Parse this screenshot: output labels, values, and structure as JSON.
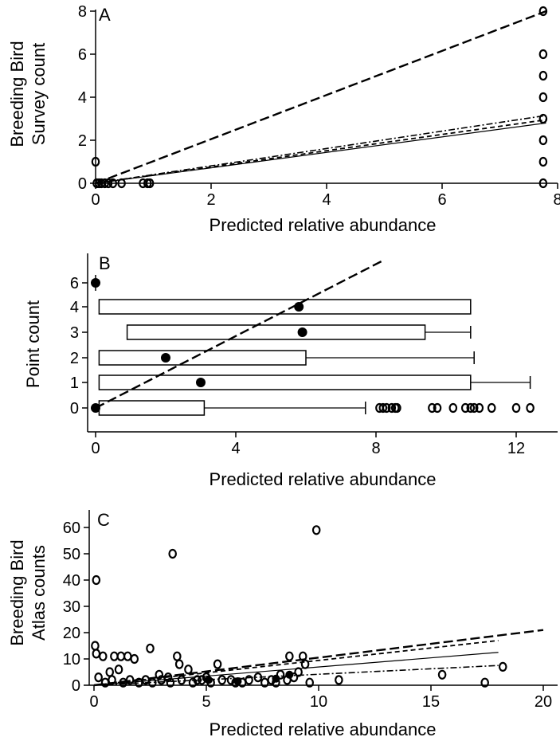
{
  "chart_data": [
    {
      "panel": "A",
      "type": "scatter",
      "xlabel": "Predicted relative abundance",
      "ylabel": [
        "Breeding Bird",
        "Survey count"
      ],
      "xlim": [
        0,
        8
      ],
      "ylim": [
        0,
        8
      ],
      "xticks": [
        0,
        2,
        4,
        6,
        8
      ],
      "yticks": [
        0,
        2,
        4,
        6,
        8
      ],
      "points": [
        [
          0,
          1
        ],
        [
          0.02,
          0
        ],
        [
          0.06,
          0
        ],
        [
          0.1,
          0
        ],
        [
          0.16,
          0
        ],
        [
          0.22,
          0
        ],
        [
          0.3,
          0
        ],
        [
          0.45,
          0
        ],
        [
          0.82,
          0
        ],
        [
          0.9,
          0
        ],
        [
          0.94,
          0
        ],
        [
          7.75,
          0
        ],
        [
          7.75,
          1
        ],
        [
          7.75,
          2
        ],
        [
          7.75,
          3
        ],
        [
          7.75,
          4
        ],
        [
          7.75,
          5
        ],
        [
          7.75,
          6
        ],
        [
          7.75,
          8
        ]
      ],
      "lines": [
        {
          "style": "long-dash",
          "points": [
            [
              0,
              0
            ],
            [
              7.8,
              8
            ]
          ]
        },
        {
          "style": "solid",
          "points": [
            [
              0,
              0
            ],
            [
              7.8,
              2.8
            ]
          ]
        },
        {
          "style": "dash",
          "points": [
            [
              0,
              0
            ],
            [
              7.8,
              2.95
            ]
          ]
        },
        {
          "style": "dash-dot",
          "points": [
            [
              0,
              0
            ],
            [
              7.8,
              3.15
            ]
          ]
        }
      ]
    },
    {
      "panel": "B",
      "type": "boxplot",
      "xlabel": "Predicted relative abundance",
      "ylabel": "Point count",
      "xlim": [
        -0.3,
        13.4
      ],
      "xticks": [
        0,
        4,
        8,
        12
      ],
      "categories": [
        "0",
        "1",
        "2",
        "3",
        "4",
        "6"
      ],
      "boxes": [
        {
          "category": "0",
          "q1": 0.1,
          "q3": 3.1,
          "whisker_high": 7.7,
          "outliers": [
            8.1,
            8.2,
            8.3,
            8.45,
            8.55,
            8.6,
            9.6,
            9.75,
            10.2,
            10.55,
            10.7,
            10.8,
            10.95,
            11.3,
            12,
            12.4
          ]
        },
        {
          "category": "1",
          "q1": 0.1,
          "q3": 10.7,
          "whisker_high": 12.4,
          "outliers": []
        },
        {
          "category": "2",
          "q1": 0.1,
          "q3": 6.0,
          "whisker_high": 10.8,
          "outliers": []
        },
        {
          "category": "3",
          "q1": 0.9,
          "q3": 9.4,
          "whisker_high": 10.7,
          "outliers": []
        },
        {
          "category": "4",
          "q1": 0.1,
          "q3": 10.7,
          "whisker_high": 10.7,
          "outliers": []
        }
      ],
      "means": [
        {
          "category": "0",
          "x": 0
        },
        {
          "category": "1",
          "x": 3.0
        },
        {
          "category": "2",
          "x": 2.0
        },
        {
          "category": "3",
          "x": 5.9
        },
        {
          "category": "4",
          "x": 5.8
        },
        {
          "category": "6",
          "x": 0
        }
      ],
      "lines": [
        {
          "style": "long-dash",
          "points": [
            [
              0,
              "0"
            ],
            [
              8.2,
              "6.8"
            ]
          ]
        }
      ]
    },
    {
      "panel": "C",
      "type": "scatter",
      "xlabel": "Predicted relative abundance",
      "ylabel": [
        "Breeding Bird",
        "Atlas counts"
      ],
      "xlim": [
        0,
        20
      ],
      "ylim": [
        0,
        65
      ],
      "xticks": [
        0,
        5,
        10,
        15,
        20
      ],
      "yticks": [
        0,
        10,
        20,
        30,
        40,
        50,
        60
      ],
      "points": [
        [
          0.1,
          40
        ],
        [
          3.5,
          50
        ],
        [
          9.9,
          59
        ],
        [
          0.05,
          15
        ],
        [
          0.1,
          12
        ],
        [
          0.4,
          11
        ],
        [
          0.9,
          11
        ],
        [
          1.2,
          11
        ],
        [
          1.5,
          11
        ],
        [
          1.8,
          10
        ],
        [
          2.5,
          14
        ],
        [
          3.7,
          11
        ],
        [
          3.8,
          8
        ],
        [
          5.5,
          8
        ],
        [
          8.7,
          11
        ],
        [
          9.3,
          11
        ],
        [
          9.4,
          8
        ],
        [
          10.9,
          2
        ],
        [
          15.5,
          4
        ],
        [
          17.4,
          1
        ],
        [
          18.2,
          7
        ],
        [
          0.7,
          5
        ],
        [
          1.1,
          6
        ],
        [
          2.9,
          4
        ],
        [
          3.3,
          3
        ],
        [
          4.2,
          6
        ],
        [
          4.6,
          2
        ],
        [
          5.0,
          3
        ],
        [
          6.1,
          2
        ],
        [
          6.6,
          1
        ],
        [
          7.3,
          3
        ],
        [
          7.9,
          2
        ],
        [
          8.3,
          4
        ],
        [
          8.9,
          3
        ],
        [
          9.1,
          5
        ],
        [
          9.6,
          1
        ],
        [
          0.2,
          3
        ],
        [
          0.5,
          1
        ],
        [
          0.8,
          2
        ],
        [
          1.3,
          1
        ],
        [
          1.6,
          2
        ],
        [
          2.0,
          1
        ],
        [
          2.3,
          2
        ],
        [
          2.6,
          1
        ],
        [
          3.0,
          2
        ],
        [
          3.4,
          1
        ],
        [
          3.9,
          2
        ],
        [
          4.4,
          1
        ],
        [
          4.8,
          2
        ],
        [
          5.2,
          1
        ],
        [
          5.7,
          2
        ],
        [
          6.3,
          1
        ],
        [
          6.9,
          2
        ],
        [
          7.6,
          1
        ],
        [
          8.1,
          1
        ],
        [
          8.6,
          2
        ]
      ],
      "filled_points": [
        [
          5.1,
          2
        ],
        [
          6.4,
          1.5
        ],
        [
          8.1,
          2.5
        ],
        [
          8.7,
          4
        ]
      ],
      "lines": [
        {
          "style": "long-dash",
          "points": [
            [
              0,
              0
            ],
            [
              20,
              21
            ]
          ]
        },
        {
          "style": "dash",
          "points": [
            [
              0,
              0
            ],
            [
              18,
              17
            ]
          ]
        },
        {
          "style": "solid",
          "points": [
            [
              0,
              0
            ],
            [
              18,
              12.5
            ]
          ]
        },
        {
          "style": "dash-dot",
          "points": [
            [
              0,
              0
            ],
            [
              18,
              7.5
            ]
          ]
        }
      ]
    }
  ]
}
